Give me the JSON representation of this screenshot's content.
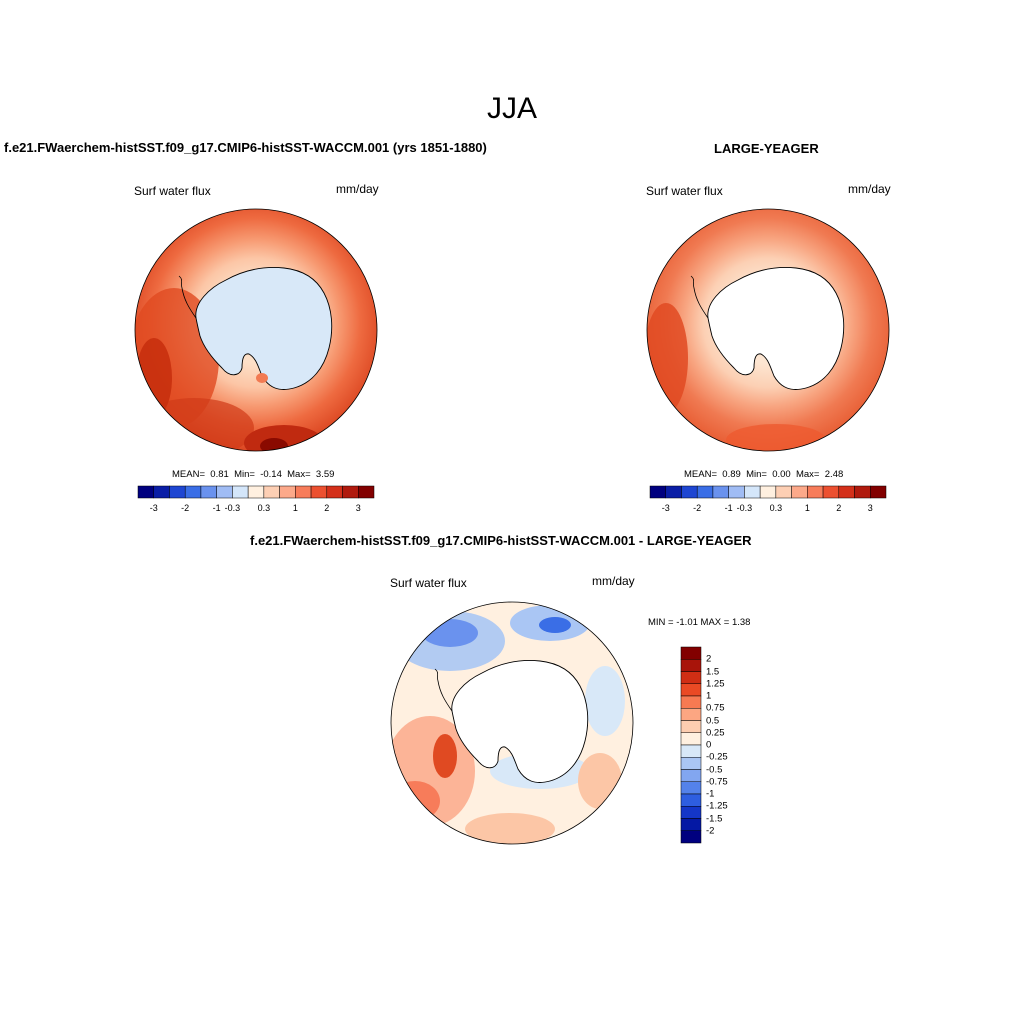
{
  "title": "JJA",
  "panels": [
    {
      "title": "f.e21.FWaerchem-histSST.f09_g17.CMIP6-histSST-WACCM.001 (yrs 1851-1880)",
      "left_label": "Surf water flux",
      "right_label": "mm/day",
      "stats": {
        "mean_label": "MEAN=",
        "mean": "0.81",
        "min_label": "Min=",
        "min": "-0.14",
        "max_label": "Max=",
        "max": "3.59"
      },
      "land_fill": "#d8e8f8"
    },
    {
      "title": "LARGE-YEAGER",
      "left_label": "Surf water flux",
      "right_label": "mm/day",
      "stats": {
        "mean_label": "MEAN=",
        "mean": "0.89",
        "min_label": "Min=",
        "min": "0.00",
        "max_label": "Max=",
        "max": "2.48"
      },
      "land_fill": "#ffffff"
    },
    {
      "title": "f.e21.FWaerchem-histSST.f09_g17.CMIP6-histSST-WACCM.001 - LARGE-YEAGER",
      "left_label": "Surf water flux",
      "right_label": "mm/day",
      "stats_text": "MIN =  -1.01 MAX =   1.38",
      "land_fill": "#ffffff"
    }
  ],
  "horizontal_colorbar": {
    "colors": [
      "#00007f",
      "#0a1ea6",
      "#1e46d2",
      "#3a6ee6",
      "#6a92ee",
      "#a0bcf4",
      "#d4e6fa",
      "#fff0e0",
      "#fdcfb4",
      "#fca98a",
      "#f77c5a",
      "#ec5030",
      "#d4301a",
      "#b01a0e",
      "#820000"
    ],
    "tick_labels": [
      "-3",
      "-2",
      "-1",
      "-0.3",
      "0.3",
      "1",
      "2",
      "3"
    ]
  },
  "vertical_colorbar": {
    "colors_top_to_bottom": [
      "#820000",
      "#a8140a",
      "#d02e14",
      "#ea4a24",
      "#f77a52",
      "#fca682",
      "#fdcdb0",
      "#fff0e0",
      "#d8e8f8",
      "#aac6f4",
      "#82a6f0",
      "#5482ea",
      "#2e5ee0",
      "#1436c8",
      "#0418a4",
      "#00007f"
    ],
    "tick_labels": [
      "2",
      "1.5",
      "1.25",
      "1",
      "0.75",
      "0.5",
      "0.25",
      "0",
      "-0.25",
      "-0.5",
      "-0.75",
      "-1",
      "-1.25",
      "-1.5",
      "-2"
    ]
  }
}
